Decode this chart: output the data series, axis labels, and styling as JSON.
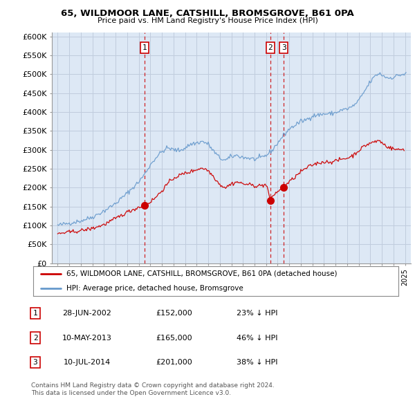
{
  "title1": "65, WILDMOOR LANE, CATSHILL, BROMSGROVE, B61 0PA",
  "title2": "Price paid vs. HM Land Registry's House Price Index (HPI)",
  "ylabel_ticks": [
    "£0",
    "£50K",
    "£100K",
    "£150K",
    "£200K",
    "£250K",
    "£300K",
    "£350K",
    "£400K",
    "£450K",
    "£500K",
    "£550K",
    "£600K"
  ],
  "ytick_values": [
    0,
    50000,
    100000,
    150000,
    200000,
    250000,
    300000,
    350000,
    400000,
    450000,
    500000,
    550000,
    600000
  ],
  "xlim": [
    1994.5,
    2025.5
  ],
  "ylim": [
    0,
    610000
  ],
  "sale_dates_decimal": [
    2002.49,
    2013.36,
    2014.53
  ],
  "sale_prices": [
    152000,
    165000,
    201000
  ],
  "sale_labels": [
    "1",
    "2",
    "3"
  ],
  "sale_date_strings": [
    "28-JUN-2002",
    "10-MAY-2013",
    "10-JUL-2014"
  ],
  "sale_price_strings": [
    "£152,000",
    "£165,000",
    "£201,000"
  ],
  "sale_pct_strings": [
    "23% ↓ HPI",
    "46% ↓ HPI",
    "38% ↓ HPI"
  ],
  "red_color": "#cc0000",
  "blue_color": "#6699cc",
  "chart_bg": "#dde8f5",
  "dashed_color": "#cc0000",
  "legend_property": "65, WILDMOOR LANE, CATSHILL, BROMSGROVE, B61 0PA (detached house)",
  "legend_hpi": "HPI: Average price, detached house, Bromsgrove",
  "footnote1": "Contains HM Land Registry data © Crown copyright and database right 2024.",
  "footnote2": "This data is licensed under the Open Government Licence v3.0.",
  "background_color": "#ffffff",
  "grid_color": "#c0ccdd"
}
